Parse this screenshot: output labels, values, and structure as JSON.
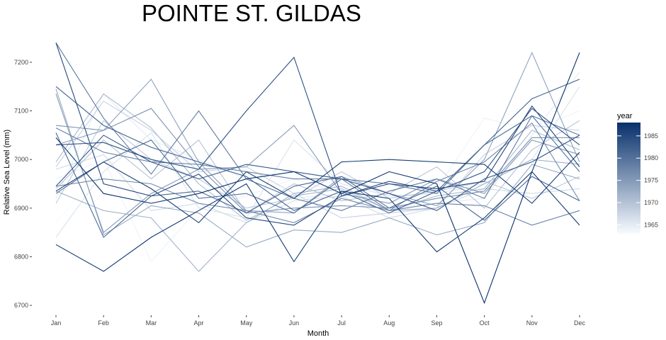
{
  "chart_data": {
    "type": "line",
    "title": "POINTE ST. GILDAS",
    "xlabel": "Month",
    "ylabel": "Relative Sea Level (mm)",
    "categories": [
      "Jan",
      "Feb",
      "Mar",
      "Apr",
      "May",
      "Jun",
      "Jul",
      "Aug",
      "Sep",
      "Oct",
      "Nov",
      "Dec"
    ],
    "ylim": [
      6690,
      7245
    ],
    "yticks": [
      6700,
      6800,
      6900,
      7000,
      7100,
      7200
    ],
    "grid": false,
    "legend": {
      "title": "year",
      "position": "right",
      "range": [
        1963,
        1988
      ],
      "ticks": [
        1965,
        1970,
        1975,
        1980,
        1985
      ],
      "color_low": "#f7fbff",
      "color_high": "#08306b"
    },
    "series": [
      {
        "year": 1963,
        "values": [
          6870,
          6985,
          6905,
          6925,
          6900,
          6940,
          6955,
          6945,
          6935,
          6995,
          6990,
          6985
        ]
      },
      {
        "year": 1964,
        "values": [
          6960,
          7000,
          6790,
          6900,
          6925,
          6960,
          6930,
          6910,
          6940,
          7085,
          7060,
          7100
        ]
      },
      {
        "year": 1965,
        "values": [
          6920,
          7135,
          7040,
          7000,
          6960,
          6920,
          6930,
          6900,
          6910,
          6920,
          7050,
          7180
        ]
      },
      {
        "year": 1966,
        "values": [
          6840,
          6975,
          7055,
          6900,
          6880,
          7040,
          6950,
          6925,
          6930,
          6950,
          7000,
          7150
        ]
      },
      {
        "year": 1967,
        "values": [
          6980,
          7010,
          6895,
          6910,
          6870,
          6915,
          6925,
          6880,
          6900,
          6940,
          6930,
          6940
        ]
      },
      {
        "year": 1968,
        "values": [
          6985,
          7120,
          7060,
          6975,
          6985,
          6930,
          6880,
          6890,
          6900,
          7010,
          7070,
          7060
        ]
      },
      {
        "year": 1969,
        "values": [
          6910,
          7080,
          7000,
          6960,
          6900,
          6920,
          6975,
          6920,
          6935,
          6955,
          6920,
          6965
        ]
      },
      {
        "year": 1970,
        "values": [
          6940,
          7040,
          6960,
          7040,
          6890,
          6950,
          6915,
          6930,
          6985,
          6900,
          7020,
          7080
        ]
      },
      {
        "year": 1971,
        "values": [
          6995,
          7135,
          7065,
          6950,
          6875,
          6925,
          6940,
          6895,
          6925,
          6940,
          7060,
          7020
        ]
      },
      {
        "year": 1972,
        "values": [
          6935,
          6895,
          6880,
          6770,
          6870,
          6930,
          6945,
          6895,
          6900,
          6950,
          7000,
          6990
        ]
      },
      {
        "year": 1973,
        "values": [
          7145,
          6845,
          6905,
          6890,
          6820,
          6855,
          6850,
          6880,
          6845,
          6870,
          6990,
          6960
        ]
      },
      {
        "year": 1974,
        "values": [
          7030,
          7060,
          7165,
          6995,
          6895,
          6890,
          6965,
          6930,
          6905,
          7000,
          7220,
          6995
        ]
      },
      {
        "year": 1975,
        "values": [
          7135,
          6850,
          6930,
          6980,
          6985,
          7070,
          6930,
          6910,
          6960,
          6930,
          7040,
          7010
        ]
      },
      {
        "year": 1976,
        "values": [
          7070,
          7060,
          7105,
          6985,
          6890,
          6900,
          6905,
          6900,
          6920,
          6935,
          7045,
          7045
        ]
      },
      {
        "year": 1977,
        "values": [
          6945,
          6960,
          6950,
          6910,
          6895,
          6870,
          6920,
          6895,
          6955,
          6995,
          7075,
          6915
        ]
      },
      {
        "year": 1978,
        "values": [
          7065,
          7015,
          6995,
          6990,
          6975,
          6960,
          6960,
          6895,
          6910,
          6905,
          6865,
          6895
        ]
      },
      {
        "year": 1979,
        "values": [
          7240,
          7085,
          6970,
          7100,
          6960,
          6920,
          6895,
          6935,
          6960,
          6920,
          7090,
          7050
        ]
      },
      {
        "year": 1980,
        "values": [
          6930,
          6995,
          7040,
          6920,
          6930,
          6890,
          6960,
          6950,
          6930,
          7030,
          7090,
          6975
        ]
      },
      {
        "year": 1981,
        "values": [
          7055,
          6840,
          6925,
          6935,
          6890,
          6945,
          6965,
          6900,
          6945,
          6875,
          6965,
          6915
        ]
      },
      {
        "year": 1982,
        "values": [
          7150,
          7070,
          7025,
          6995,
          6965,
          6895,
          6935,
          6890,
          6935,
          7030,
          7125,
          7165
        ]
      },
      {
        "year": 1983,
        "values": [
          6945,
          7050,
          6995,
          6960,
          6990,
          6975,
          6960,
          6930,
          6895,
          6960,
          6995,
          7050
        ]
      },
      {
        "year": 1984,
        "values": [
          7030,
          7035,
          7000,
          6980,
          7100,
          7210,
          6925,
          6955,
          6935,
          6975,
          7105,
          7030
        ]
      },
      {
        "year": 1985,
        "values": [
          7240,
          6950,
          6925,
          6970,
          6880,
          6865,
          6925,
          6950,
          6940,
          6955,
          7110,
          6985
        ]
      },
      {
        "year": 1986,
        "values": [
          6935,
          6995,
          6940,
          6870,
          6975,
          6920,
          6995,
          7000,
          6995,
          6990,
          6910,
          7015
        ]
      },
      {
        "year": 1987,
        "values": [
          6825,
          6770,
          6840,
          6895,
          6950,
          6790,
          6935,
          6920,
          6810,
          6880,
          6975,
          6865
        ]
      },
      {
        "year": 1988,
        "values": [
          7045,
          6930,
          6910,
          6930,
          6960,
          6975,
          6930,
          6975,
          6950,
          6705,
          6975,
          7220
        ]
      }
    ]
  }
}
